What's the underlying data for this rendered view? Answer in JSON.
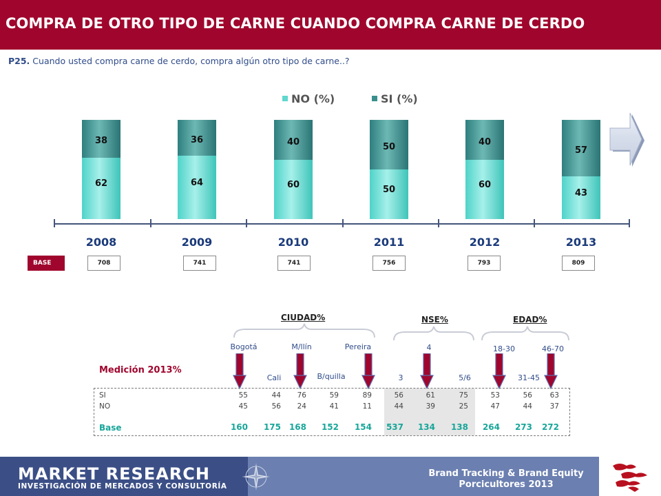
{
  "title": "COMPRA DE OTRO TIPO DE CARNE CUANDO COMPRA CARNE DE CERDO",
  "question": {
    "code": "P25.",
    "text": "Cuando usted compra carne de cerdo, compra algún otro tipo de carne..?"
  },
  "chart_data": {
    "type": "bar",
    "stacked": true,
    "categories": [
      "2008",
      "2009",
      "2010",
      "2011",
      "2012",
      "2013"
    ],
    "series": [
      {
        "name": "NO (%)",
        "values": [
          62,
          64,
          60,
          50,
          60,
          43
        ]
      },
      {
        "name": "SI (%)",
        "values": [
          38,
          36,
          40,
          50,
          40,
          57
        ]
      }
    ],
    "ylim": [
      0,
      100
    ],
    "legend_position": "top",
    "colors": {
      "NO": "#5fd8cd",
      "SI": "#3a8f8c"
    }
  },
  "base": {
    "label": "BASE",
    "values": [
      "708",
      "741",
      "741",
      "756",
      "793",
      "809"
    ]
  },
  "measurement_label": "Medición 2013%",
  "groups": {
    "ciudad": "CIUDAD%",
    "nse": "NSE%",
    "edad": "EDAD%"
  },
  "segments": [
    "Bogotá",
    "Cali",
    "M/llín",
    "B/quilla",
    "Pereira",
    "3",
    "4",
    "5/6",
    "18-30",
    "31-45",
    "46-70"
  ],
  "table": {
    "row_labels": [
      "SI",
      "NO",
      "Base"
    ],
    "si": [
      "55",
      "44",
      "76",
      "59",
      "89",
      "56",
      "61",
      "75",
      "53",
      "56",
      "63"
    ],
    "no": [
      "45",
      "56",
      "24",
      "41",
      "11",
      "44",
      "39",
      "25",
      "47",
      "44",
      "37"
    ],
    "base": [
      "160",
      "175",
      "168",
      "152",
      "154",
      "537",
      "134",
      "138",
      "264",
      "273",
      "272"
    ]
  },
  "footer": {
    "brand": "MARKET RESEARCH",
    "brand_sub": "INVESTIGACIÓN DE MERCADOS Y CONSULTORÍA",
    "line1": "Brand Tracking & Brand Equity",
    "line2": "Porcicultores 2013"
  },
  "colors": {
    "brand_red": "#a0062d",
    "text_blue": "#2f4b8a",
    "base_teal": "#18a69a",
    "footer_blue": "#3b4f86"
  }
}
